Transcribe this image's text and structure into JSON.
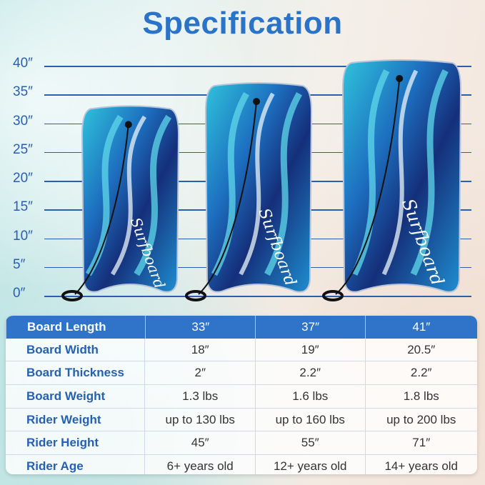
{
  "title": "Specification",
  "scale": {
    "unit": "inch",
    "labels": [
      "40″",
      "35″",
      "30″",
      "25″",
      "20″",
      "15″",
      "10″",
      "5″",
      "0″"
    ],
    "values": [
      40,
      35,
      30,
      25,
      20,
      15,
      10,
      5,
      0
    ]
  },
  "boards": [
    {
      "length": 33,
      "brand": "Surfboard"
    },
    {
      "length": 37,
      "brand": "Surfboard"
    },
    {
      "length": 41,
      "brand": "Surfboard"
    }
  ],
  "colors": {
    "accent": "#2f74c8",
    "label_text": "#2561b0",
    "board_dark": "#143a8a",
    "board_light": "#2fc3db"
  },
  "table": {
    "header": {
      "label": "Board Length",
      "values": [
        "33″",
        "37″",
        "41″"
      ]
    },
    "rows": [
      {
        "label": "Board Width",
        "values": [
          "18″",
          "19″",
          "20.5″"
        ]
      },
      {
        "label": "Board Thickness",
        "values": [
          "2″",
          "2.2″",
          "2.2″"
        ]
      },
      {
        "label": "Board Weight",
        "values": [
          "1.3 lbs",
          "1.6 lbs",
          "1.8 lbs"
        ]
      },
      {
        "label": "Rider Weight",
        "values": [
          "up to 130 lbs",
          "up to 160 lbs",
          "up to 200 lbs"
        ]
      },
      {
        "label": "Rider Height",
        "values": [
          "45″",
          "55″",
          "71″"
        ]
      },
      {
        "label": "Rider Age",
        "values": [
          "6+ years old",
          "12+ years old",
          "14+ years old"
        ]
      }
    ]
  }
}
